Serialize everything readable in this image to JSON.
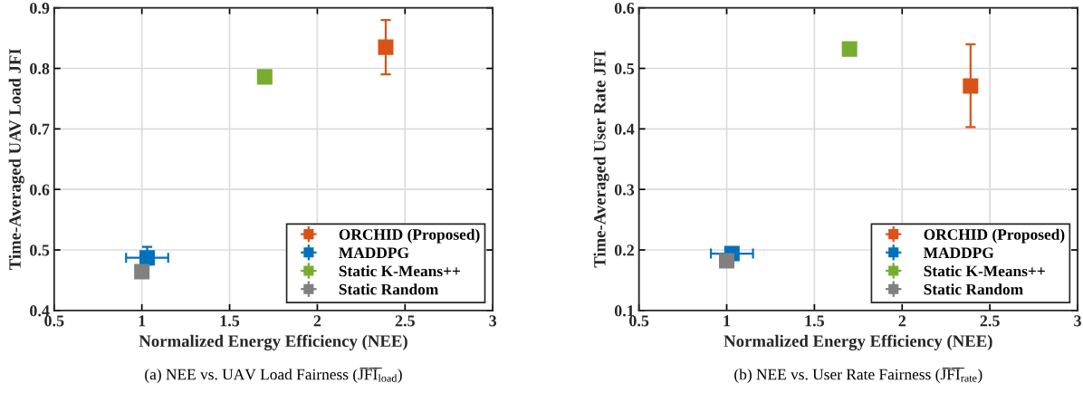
{
  "chart_data": [
    {
      "type": "scatter",
      "title": "(a) NEE vs. UAV Load Fairness (J̅F̅I̅$_{load}$)",
      "xlabel": "Normalized Energy Efficiency (NEE)",
      "ylabel": "Time-Averaged UAV Load JFI",
      "xlim": [
        0.5,
        3
      ],
      "xticks": [
        0.5,
        1,
        1.5,
        2,
        2.5,
        3
      ],
      "ylim": [
        0.4,
        0.9
      ],
      "yticks": [
        0.4,
        0.5,
        0.6,
        0.7,
        0.8,
        0.9
      ],
      "grid": true,
      "legend": "bottom right",
      "marker": "square",
      "series": [
        {
          "name": "ORCHID (Proposed)",
          "color": "#d95319",
          "x": [
            2.39
          ],
          "values": [
            0.835
          ],
          "errors": [
            [
              0.79,
              0.88
            ]
          ],
          "xerrors": [
            null
          ]
        },
        {
          "name": "MADDPG",
          "color": "#0072bd",
          "x": [
            1.03
          ],
          "values": [
            0.487
          ],
          "errors": [
            [
              0.476,
              0.505
            ]
          ],
          "xerrors": [
            [
              0.91,
              1.15
            ]
          ]
        },
        {
          "name": "Static K-Means++",
          "color": "#77ac30",
          "x": [
            1.7
          ],
          "values": [
            0.786
          ],
          "errors": [
            null
          ],
          "xerrors": [
            null
          ]
        },
        {
          "name": "Static Random",
          "color": "#808080",
          "x": [
            1.0
          ],
          "values": [
            0.464
          ],
          "errors": [
            [
              0.455,
              0.474
            ]
          ],
          "xerrors": [
            null
          ]
        }
      ]
    },
    {
      "type": "scatter",
      "title": "(b) NEE vs. User Rate Fairness (J̅F̅I̅$_{rate}$)",
      "xlabel": "Normalized Energy Efficiency (NEE)",
      "ylabel": "Time-Averaged User Rate JFI",
      "xlim": [
        0.5,
        3
      ],
      "xticks": [
        0.5,
        1,
        1.5,
        2,
        2.5,
        3
      ],
      "ylim": [
        0.1,
        0.6
      ],
      "yticks": [
        0.1,
        0.2,
        0.3,
        0.4,
        0.5,
        0.6
      ],
      "grid": true,
      "legend": "bottom right",
      "marker": "square",
      "series": [
        {
          "name": "ORCHID (Proposed)",
          "color": "#d95319",
          "x": [
            2.39
          ],
          "values": [
            0.471
          ],
          "errors": [
            [
              0.403,
              0.54
            ]
          ],
          "xerrors": [
            null
          ]
        },
        {
          "name": "MADDPG",
          "color": "#0072bd",
          "x": [
            1.03
          ],
          "values": [
            0.194
          ],
          "errors": [
            null
          ],
          "xerrors": [
            [
              0.91,
              1.15
            ]
          ]
        },
        {
          "name": "Static K-Means++",
          "color": "#77ac30",
          "x": [
            1.7
          ],
          "values": [
            0.532
          ],
          "errors": [
            null
          ],
          "xerrors": [
            null
          ]
        },
        {
          "name": "Static Random",
          "color": "#808080",
          "x": [
            1.0
          ],
          "values": [
            0.182
          ],
          "errors": [
            null
          ],
          "xerrors": [
            null
          ]
        }
      ]
    }
  ]
}
